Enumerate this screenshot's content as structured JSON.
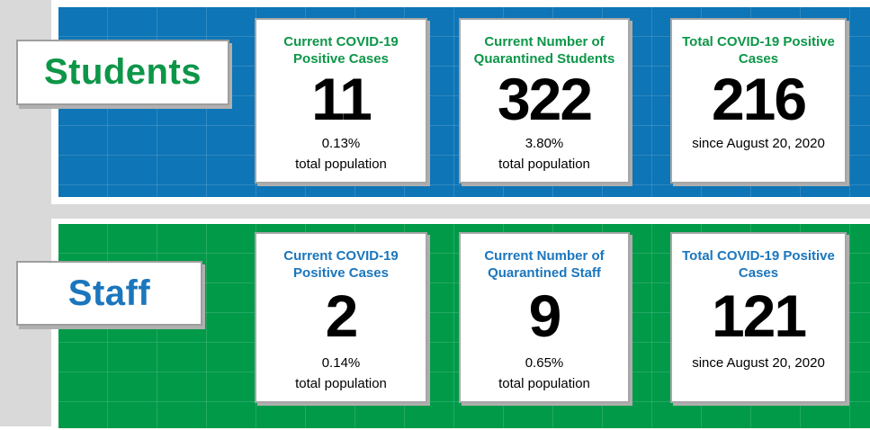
{
  "page": {
    "background_color": "#ffffff",
    "gutter_color": "#d9d9d9",
    "divider_color": "#d9d9d9",
    "card_border_color": "#a6a6a6",
    "number_color": "#000000"
  },
  "sections": [
    {
      "id": "students",
      "label": "Students",
      "panel_color": "#0e75b6",
      "text_color": "#0d9648",
      "cards": [
        {
          "title": "Current COVID-19 Positive Cases",
          "value": "11",
          "line1": "0.13%",
          "line2": "total population"
        },
        {
          "title": "Current Number of Quarantined Students",
          "value": "322",
          "line1": "3.80%",
          "line2": "total population"
        },
        {
          "title": "Total COVID-19 Positive Cases",
          "value": "216",
          "line1": "since August 20, 2020",
          "line2": ""
        }
      ]
    },
    {
      "id": "staff",
      "label": "Staff",
      "panel_color": "#009a49",
      "text_color": "#1b76bd",
      "cards": [
        {
          "title": "Current COVID-19 Positive Cases",
          "value": "2",
          "line1": "0.14%",
          "line2": "total population"
        },
        {
          "title": "Current Number of Quarantined Staff",
          "value": "9",
          "line1": "0.65%",
          "line2": "total population"
        },
        {
          "title": "Total COVID-19 Positive Cases",
          "value": "121",
          "line1": "since August 20, 2020",
          "line2": ""
        }
      ]
    }
  ]
}
